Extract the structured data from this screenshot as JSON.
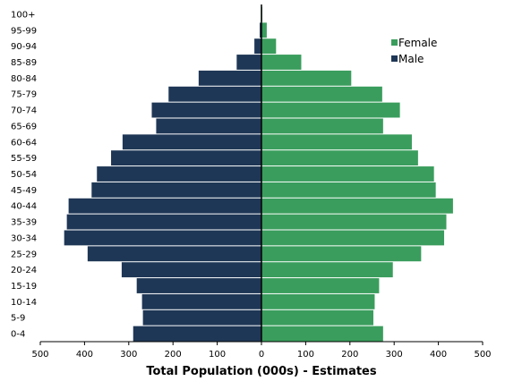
{
  "chart_data": {
    "type": "bar",
    "orientation": "horizontal",
    "layout": "population-pyramid",
    "xlabel": "Total Population (000s) - Estimates",
    "xlim": [
      -500,
      500
    ],
    "xticks": [
      -500,
      -400,
      -300,
      -200,
      -100,
      0,
      100,
      200,
      300,
      400,
      500
    ],
    "xtick_labels": [
      "500",
      "400",
      "300",
      "200",
      "100",
      "0",
      "100",
      "200",
      "300",
      "400",
      "500"
    ],
    "categories": [
      "0-4",
      "5-9",
      "10-14",
      "15-19",
      "20-24",
      "25-29",
      "30-34",
      "35-39",
      "40-44",
      "45-49",
      "50-54",
      "55-59",
      "60-64",
      "65-69",
      "70-74",
      "75-79",
      "80-84",
      "85-89",
      "90-94",
      "95-99",
      "100+"
    ],
    "series": [
      {
        "name": "Female",
        "side": "right",
        "color": "#3a9d5d",
        "values": [
          275,
          253,
          256,
          266,
          297,
          361,
          413,
          418,
          433,
          394,
          390,
          354,
          340,
          275,
          313,
          273,
          203,
          90,
          33,
          12,
          2
        ]
      },
      {
        "name": "Male",
        "side": "left",
        "color": "#1f3756",
        "values": [
          290,
          268,
          270,
          282,
          316,
          393,
          446,
          440,
          436,
          384,
          372,
          340,
          314,
          238,
          248,
          210,
          142,
          56,
          16,
          4,
          1
        ]
      }
    ],
    "legend": {
      "placement": "top-right",
      "entries": [
        "Female",
        "Male"
      ]
    },
    "grid": false
  }
}
